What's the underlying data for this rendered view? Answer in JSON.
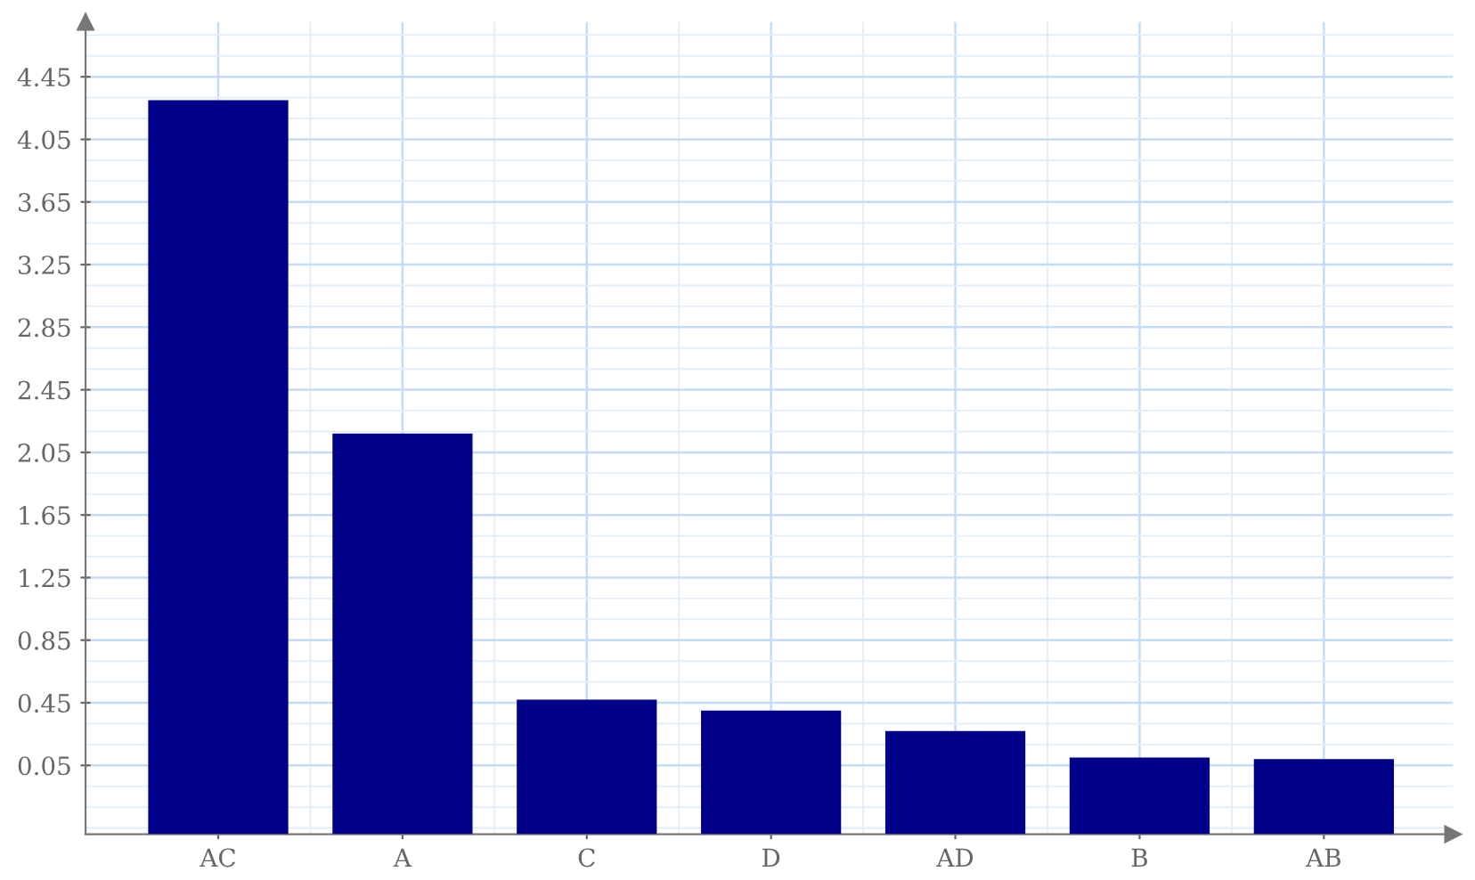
{
  "chart_data": {
    "type": "bar",
    "categories": [
      "AC",
      "A",
      "C",
      "D",
      "AD",
      "B",
      "AB"
    ],
    "values": [
      4.69,
      2.56,
      0.86,
      0.79,
      0.66,
      0.49,
      0.48
    ],
    "base": [
      -0.39,
      -0.39,
      -0.39,
      -0.39,
      -0.39,
      -0.39,
      -0.39
    ],
    "color": "#000088",
    "ylim": [
      -0.39,
      4.8
    ],
    "yticks": [
      0.05,
      0.45,
      0.85,
      1.25,
      1.65,
      2.05,
      2.45,
      2.85,
      3.25,
      3.65,
      4.05,
      4.45
    ],
    "grid": true
  }
}
